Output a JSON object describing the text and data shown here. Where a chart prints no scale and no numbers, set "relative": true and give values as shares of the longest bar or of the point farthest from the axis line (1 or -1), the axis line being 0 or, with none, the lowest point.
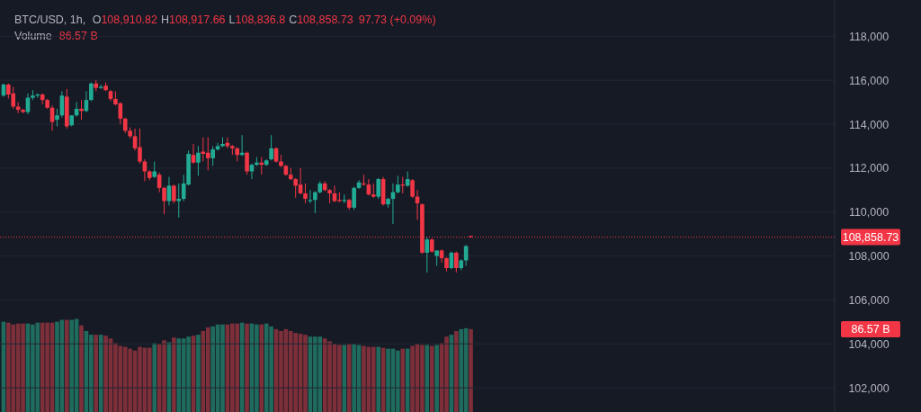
{
  "chart_data": [
    {
      "type": "candlestick",
      "categories": [
        null,
        null,
        null,
        null,
        null,
        null,
        null,
        null,
        null,
        null,
        null,
        null,
        null,
        null,
        null,
        null,
        null,
        null,
        null,
        null,
        null,
        null,
        null,
        null,
        null,
        null,
        null,
        null,
        null,
        null,
        null,
        null,
        null,
        null,
        null,
        null,
        null,
        null,
        null,
        null,
        null,
        null,
        null,
        null,
        null,
        null,
        null,
        null,
        null,
        null,
        null,
        null,
        null,
        null,
        null,
        null,
        null,
        null,
        null,
        null,
        null,
        null,
        null,
        null,
        null,
        null,
        null,
        null,
        null,
        null,
        null,
        null,
        null,
        null,
        null,
        null,
        null,
        null,
        null,
        null,
        null,
        null,
        null,
        null,
        null,
        null,
        null,
        null,
        null,
        null,
        null,
        null,
        null,
        null,
        null,
        null,
        null,
        null,
        null,
        null,
        null,
        null,
        null,
        null,
        null,
        null,
        null,
        null,
        null,
        null,
        null,
        null,
        null,
        null,
        null,
        null,
        null,
        null,
        null,
        null,
        null,
        null,
        null,
        null,
        null,
        null,
        null,
        null,
        null,
        null,
        null,
        null,
        null,
        null,
        null,
        null,
        null,
        null,
        null,
        null,
        null,
        null,
        null,
        null,
        null,
        null,
        null,
        null,
        null,
        null,
        null,
        null,
        null,
        null,
        null,
        null,
        null,
        null,
        null,
        null,
        null,
        null,
        null,
        null,
        null,
        null,
        null,
        null,
        null,
        null,
        null
      ],
      "ohlc": [
        [
          115300,
          115850,
          115250,
          115800
        ],
        [
          115800,
          115850,
          115170,
          115350
        ],
        [
          115400,
          115700,
          114700,
          114800
        ],
        [
          114800,
          115000,
          114500,
          114650
        ],
        [
          114650,
          114700,
          114500,
          114550
        ],
        [
          114550,
          115400,
          114450,
          115200
        ],
        [
          115200,
          115550,
          115100,
          115300
        ],
        [
          115300,
          115400,
          115200,
          115350
        ],
        [
          115350,
          115400,
          114900,
          115100
        ],
        [
          115100,
          115150,
          114700,
          114750
        ],
        [
          114750,
          114850,
          113700,
          114100
        ],
        [
          114200,
          114700,
          113900,
          114400
        ],
        [
          114400,
          115500,
          114300,
          115300
        ],
        [
          115250,
          115600,
          113800,
          113900
        ],
        [
          113950,
          114400,
          113900,
          114400
        ],
        [
          114400,
          115000,
          114350,
          114700
        ],
        [
          114700,
          115100,
          114200,
          114600
        ],
        [
          114600,
          115500,
          114550,
          115100
        ],
        [
          115100,
          115900,
          115050,
          115850
        ],
        [
          115850,
          116000,
          115500,
          115650
        ],
        [
          115650,
          115800,
          115600,
          115700
        ],
        [
          115750,
          115900,
          115500,
          115550
        ],
        [
          115500,
          115550,
          115050,
          115150
        ],
        [
          115150,
          115500,
          114850,
          114900
        ],
        [
          114950,
          115000,
          114000,
          114250
        ],
        [
          114250,
          114300,
          113600,
          113700
        ],
        [
          113700,
          113850,
          113350,
          113450
        ],
        [
          113450,
          113800,
          112800,
          112900
        ],
        [
          112950,
          113800,
          112200,
          112300
        ],
        [
          112300,
          112400,
          111400,
          111850
        ],
        [
          111850,
          111900,
          111450,
          111550
        ],
        [
          111600,
          112300,
          111550,
          111850
        ],
        [
          111700,
          111800,
          110900,
          111100
        ],
        [
          111100,
          111150,
          109900,
          110500
        ],
        [
          110500,
          111600,
          110300,
          111200
        ],
        [
          111200,
          111250,
          110400,
          110500
        ],
        [
          110500,
          111300,
          109750,
          110600
        ],
        [
          110600,
          111700,
          110500,
          111300
        ],
        [
          111250,
          112800,
          111200,
          112650
        ],
        [
          112600,
          113100,
          112200,
          112250
        ],
        [
          112250,
          113000,
          111650,
          112700
        ],
        [
          112750,
          113400,
          112300,
          112650
        ],
        [
          112700,
          113400,
          111900,
          112450
        ],
        [
          112450,
          113000,
          112100,
          112850
        ],
        [
          112850,
          113150,
          112800,
          113000
        ],
        [
          113000,
          113400,
          112950,
          113100
        ],
        [
          113150,
          113400,
          112900,
          113000
        ],
        [
          113000,
          113050,
          112600,
          112900
        ],
        [
          112900,
          112950,
          112300,
          112600
        ],
        [
          112600,
          113500,
          112550,
          112700
        ],
        [
          112700,
          112750,
          111700,
          111850
        ],
        [
          111850,
          112200,
          111500,
          112150
        ],
        [
          112150,
          112500,
          112100,
          112250
        ],
        [
          112250,
          112500,
          111700,
          112150
        ],
        [
          112150,
          112400,
          112100,
          112350
        ],
        [
          112400,
          113500,
          112350,
          112900
        ],
        [
          112900,
          112950,
          112250,
          112300
        ],
        [
          112300,
          112600,
          112050,
          112100
        ],
        [
          112100,
          112150,
          111650,
          111700
        ],
        [
          111700,
          112000,
          111450,
          111500
        ],
        [
          111500,
          111550,
          110650,
          111200
        ],
        [
          111250,
          112000,
          110800,
          110850
        ],
        [
          110850,
          111300,
          110400,
          110600
        ],
        [
          110500,
          111000,
          110400,
          110550
        ],
        [
          110550,
          110950,
          109950,
          110900
        ],
        [
          110900,
          111400,
          110850,
          111300
        ],
        [
          111300,
          111400,
          110950,
          111000
        ],
        [
          111000,
          111050,
          110400,
          110850
        ],
        [
          110850,
          111200,
          110450,
          110500
        ],
        [
          110550,
          110900,
          110450,
          110500
        ],
        [
          110500,
          110800,
          110400,
          110550
        ],
        [
          110550,
          110600,
          110100,
          110200
        ],
        [
          110200,
          111150,
          110100,
          111100
        ],
        [
          111100,
          111450,
          111050,
          111350
        ],
        [
          111300,
          111700,
          111200,
          111250
        ],
        [
          111250,
          111500,
          110750,
          110800
        ],
        [
          110800,
          111300,
          110650,
          110700
        ],
        [
          110700,
          111550,
          110600,
          111500
        ],
        [
          111500,
          111600,
          110300,
          110350
        ],
        [
          110350,
          110650,
          110200,
          110600
        ],
        [
          110600,
          111300,
          109450,
          110900
        ],
        [
          110900,
          111650,
          110850,
          111250
        ],
        [
          111250,
          111600,
          110850,
          111200
        ],
        [
          111200,
          111850,
          111150,
          111500
        ],
        [
          111450,
          111500,
          110650,
          110700
        ],
        [
          110700,
          111000,
          109650,
          110400
        ],
        [
          110350,
          110400,
          108100,
          108150
        ],
        [
          108150,
          108850,
          107250,
          108750
        ],
        [
          108750,
          108800,
          108150,
          108200
        ],
        [
          108000,
          108250,
          107550,
          108250
        ],
        [
          108250,
          108300,
          107700,
          107900
        ],
        [
          107900,
          107950,
          107300,
          107450
        ],
        [
          107450,
          108200,
          107400,
          108150
        ],
        [
          108150,
          108200,
          107250,
          107450
        ],
        [
          107450,
          107850,
          107350,
          107800
        ],
        [
          107800,
          108500,
          107550,
          108450
        ],
        [
          108910.82,
          108917.66,
          108836.8,
          108858.73
        ],
        null,
        null,
        null,
        null,
        null,
        null,
        null,
        null,
        null,
        null,
        null,
        null,
        null,
        null,
        null,
        null,
        null,
        null,
        null,
        null,
        null,
        null,
        null,
        null,
        null,
        null,
        null,
        null,
        null,
        null,
        null,
        null,
        null,
        null,
        null,
        null,
        null,
        null,
        null,
        null,
        null,
        null,
        null,
        null,
        null,
        null,
        null,
        null,
        null,
        null,
        null,
        null,
        null,
        null,
        null,
        null,
        null,
        null,
        null,
        null,
        null,
        null,
        null,
        null,
        null,
        null,
        null,
        null,
        null,
        null,
        null,
        null,
        null,
        null
      ],
      "ylim": [
        100900,
        119650
      ],
      "yticks": [
        {
          "value": 102000,
          "label": "102,000"
        },
        {
          "value": 104000,
          "label": "104,000"
        },
        {
          "value": 106000,
          "label": "106,000"
        },
        {
          "value": 108000,
          "label": "108,000"
        },
        {
          "value": 110000,
          "label": "110,000"
        },
        {
          "value": 112000,
          "label": "112,000"
        },
        {
          "value": 114000,
          "label": "114,000"
        },
        {
          "value": 116000,
          "label": "116,000"
        },
        {
          "value": 118000,
          "label": "118,000"
        }
      ],
      "grid": "y",
      "tick_labels": "y",
      "ref_lines": [
        {
          "axis": "y",
          "value": 108858.73,
          "label": "108,858.73",
          "color": "#f23645",
          "line_style": "dotted"
        }
      ],
      "annotations": [
        "BTC/USD, 1h,",
        "O108,910.82",
        "H108,917.66",
        "L108,836.8",
        "C108,858.73",
        "97.73 (+0.09%)"
      ]
    },
    {
      "type": "bar",
      "relative": true,
      "title": "Volume",
      "categories": [
        null,
        null,
        null,
        null,
        null,
        null,
        null,
        null,
        null,
        null,
        null,
        null,
        null,
        null,
        null,
        null,
        null,
        null,
        null,
        null,
        null,
        null,
        null,
        null,
        null,
        null,
        null,
        null,
        null,
        null,
        null,
        null,
        null,
        null,
        null,
        null,
        null,
        null,
        null,
        null,
        null,
        null,
        null,
        null,
        null,
        null,
        null,
        null,
        null,
        null,
        null,
        null,
        null,
        null,
        null,
        null,
        null,
        null,
        null,
        null,
        null,
        null,
        null,
        null,
        null,
        null,
        null,
        null,
        null,
        null,
        null,
        null,
        null,
        null,
        null,
        null,
        null,
        null,
        null,
        null,
        null,
        null,
        null,
        null,
        null,
        null,
        null,
        null,
        null,
        null,
        null,
        null,
        null,
        null,
        null,
        null,
        null,
        null,
        null,
        null,
        null,
        null,
        null,
        null,
        null,
        null,
        null,
        null,
        null,
        null,
        null,
        null,
        null,
        null,
        null,
        null,
        null,
        null,
        null,
        null,
        null,
        null,
        null,
        null,
        null,
        null,
        null,
        null,
        null,
        null,
        null,
        null,
        null,
        null,
        null,
        null,
        null,
        null,
        null,
        null,
        null,
        null,
        null,
        null,
        null,
        null,
        null,
        null,
        null,
        null,
        null,
        null,
        null,
        null,
        null,
        null,
        null,
        null,
        null,
        null,
        null,
        null,
        null,
        null,
        null,
        null,
        null,
        null,
        null,
        null,
        null
      ],
      "values": [
        0.97,
        0.96,
        0.94,
        0.95,
        0.95,
        0.95,
        0.94,
        0.96,
        0.96,
        0.96,
        0.96,
        0.97,
        0.99,
        0.99,
        0.99,
        1.0,
        0.93,
        0.87,
        0.83,
        0.83,
        0.83,
        0.82,
        0.79,
        0.74,
        0.71,
        0.7,
        0.68,
        0.66,
        0.7,
        0.69,
        0.69,
        0.74,
        0.73,
        0.77,
        0.75,
        0.8,
        0.79,
        0.79,
        0.81,
        0.82,
        0.83,
        0.87,
        0.91,
        0.92,
        0.94,
        0.94,
        0.94,
        0.95,
        0.95,
        0.96,
        0.95,
        0.95,
        0.94,
        0.94,
        0.95,
        0.92,
        0.89,
        0.87,
        0.89,
        0.87,
        0.85,
        0.84,
        0.83,
        0.81,
        0.81,
        0.81,
        0.79,
        0.76,
        0.73,
        0.72,
        0.72,
        0.73,
        0.73,
        0.72,
        0.71,
        0.7,
        0.7,
        0.7,
        0.69,
        0.68,
        0.68,
        0.66,
        0.68,
        0.68,
        0.71,
        0.73,
        0.72,
        0.72,
        0.71,
        0.72,
        0.74,
        0.81,
        0.83,
        0.87,
        0.89,
        0.9,
        0.89,
        null,
        null,
        null,
        null,
        null,
        null,
        null,
        null,
        null,
        null,
        null,
        null,
        null,
        null,
        null,
        null,
        null,
        null,
        null,
        null,
        null,
        null,
        null,
        null,
        null,
        null,
        null,
        null,
        null,
        null,
        null,
        null,
        null,
        null,
        null,
        null,
        null,
        null,
        null,
        null,
        null,
        null,
        null,
        null,
        null,
        null,
        null,
        null,
        null,
        null,
        null,
        null,
        null,
        null,
        null,
        null,
        null,
        null,
        null,
        null,
        null,
        null,
        null,
        null,
        null,
        null,
        null,
        null,
        null,
        null,
        null,
        null,
        null,
        null
      ],
      "colors": [
        "#1f6b5d",
        "#7d2f3a",
        "#7d2f3a",
        "#7d2f3a",
        "#7d2f3a",
        "#1f6b5d",
        "#1f6b5d",
        "#1f6b5d",
        "#7d2f3a",
        "#7d2f3a",
        "#7d2f3a",
        "#1f6b5d",
        "#1f6b5d",
        "#7d2f3a",
        "#1f6b5d",
        "#1f6b5d",
        "#7d2f3a",
        "#1f6b5d",
        "#1f6b5d",
        "#7d2f3a",
        "#1f6b5d",
        "#7d2f3a",
        "#7d2f3a",
        "#7d2f3a",
        "#7d2f3a",
        "#7d2f3a",
        "#7d2f3a",
        "#7d2f3a",
        "#7d2f3a",
        "#7d2f3a",
        "#7d2f3a",
        "#1f6b5d",
        "#7d2f3a",
        "#7d2f3a",
        "#1f6b5d",
        "#7d2f3a",
        "#1f6b5d",
        "#1f6b5d",
        "#1f6b5d",
        "#7d2f3a",
        "#1f6b5d",
        "#7d2f3a",
        "#7d2f3a",
        "#1f6b5d",
        "#1f6b5d",
        "#1f6b5d",
        "#7d2f3a",
        "#7d2f3a",
        "#7d2f3a",
        "#1f6b5d",
        "#7d2f3a",
        "#1f6b5d",
        "#1f6b5d",
        "#7d2f3a",
        "#1f6b5d",
        "#1f6b5d",
        "#7d2f3a",
        "#7d2f3a",
        "#7d2f3a",
        "#7d2f3a",
        "#7d2f3a",
        "#7d2f3a",
        "#7d2f3a",
        "#1f6b5d",
        "#1f6b5d",
        "#1f6b5d",
        "#7d2f3a",
        "#7d2f3a",
        "#7d2f3a",
        "#7d2f3a",
        "#1f6b5d",
        "#7d2f3a",
        "#1f6b5d",
        "#1f6b5d",
        "#7d2f3a",
        "#7d2f3a",
        "#7d2f3a",
        "#1f6b5d",
        "#7d2f3a",
        "#1f6b5d",
        "#1f6b5d",
        "#1f6b5d",
        "#7d2f3a",
        "#1f6b5d",
        "#7d2f3a",
        "#7d2f3a",
        "#7d2f3a",
        "#1f6b5d",
        "#7d2f3a",
        "#1f6b5d",
        "#7d2f3a",
        "#7d2f3a",
        "#1f6b5d",
        "#7d2f3a",
        "#1f6b5d",
        "#1f6b5d",
        "#7d2f3a",
        null,
        null,
        null,
        null,
        null,
        null,
        null,
        null,
        null,
        null,
        null,
        null,
        null,
        null,
        null,
        null,
        null,
        null,
        null,
        null,
        null,
        null,
        null,
        null,
        null,
        null,
        null,
        null,
        null,
        null,
        null,
        null,
        null,
        null,
        null,
        null,
        null,
        null,
        null,
        null,
        null,
        null,
        null,
        null,
        null,
        null,
        null,
        null,
        null,
        null,
        null,
        null,
        null,
        null,
        null,
        null,
        null,
        null,
        null,
        null,
        null,
        null,
        null,
        null,
        null,
        null,
        null,
        null,
        null,
        null,
        null,
        null,
        null,
        null
      ],
      "annotations": [
        "86.57 B",
        "86.57 B"
      ]
    }
  ]
}
